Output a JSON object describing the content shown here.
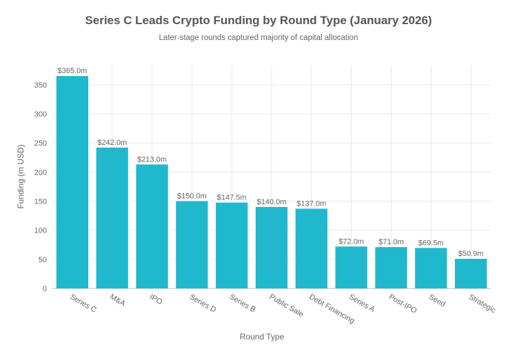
{
  "chart_data": {
    "type": "bar",
    "title": "Series C Leads Crypto Funding by Round Type (January 2026)",
    "subtitle": "Later-stage rounds captured majority of capital allocation",
    "xlabel": "Round Type",
    "ylabel": "Funding (m USD)",
    "categories": [
      "Series C",
      "M&A",
      "IPO",
      "Series D",
      "Series B",
      "Public Sale",
      "Debt Financing",
      "Series A",
      "Post-IPO",
      "Seed",
      "Strategic"
    ],
    "values": [
      365.0,
      242.0,
      213.0,
      150.0,
      147.5,
      140.0,
      137.0,
      72.0,
      71.0,
      69.5,
      50.9
    ],
    "data_labels": [
      "$365.0m",
      "$242.0m",
      "$213.0m",
      "$150.0m",
      "$147.5m",
      "$140.0m",
      "$137.0m",
      "$72.0m",
      "$71.0m",
      "$69.5m",
      "$50.9m"
    ],
    "yticks": [
      0,
      50,
      100,
      150,
      200,
      250,
      300,
      350
    ],
    "ylim": [
      0,
      383
    ],
    "grid": true,
    "bar_color": "#20B8CD"
  }
}
